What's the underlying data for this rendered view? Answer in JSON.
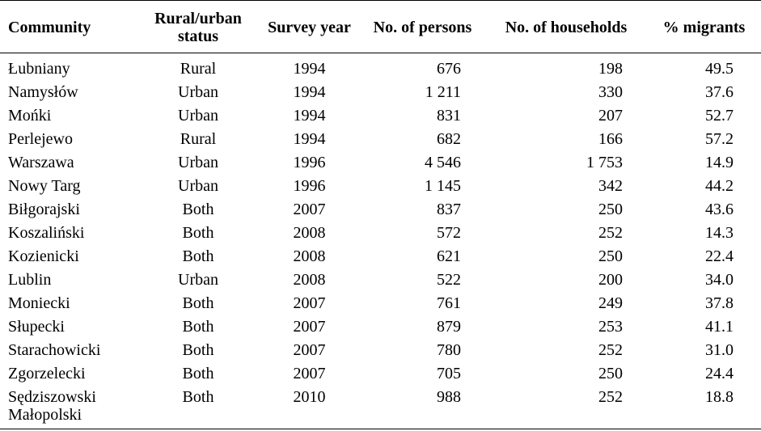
{
  "table": {
    "headers": {
      "community": "Community",
      "status": "Rural/urban status",
      "year": "Survey year",
      "persons": "No. of persons",
      "households": "No. of households",
      "migrants": "% migrants"
    },
    "rows": [
      {
        "community": "Łubniany",
        "status": "Rural",
        "year": "1994",
        "persons": "676",
        "households": "198",
        "migrants": "49.5"
      },
      {
        "community": "Namysłów",
        "status": "Urban",
        "year": "1994",
        "persons": "1 211",
        "households": "330",
        "migrants": "37.6"
      },
      {
        "community": "Mońki",
        "status": "Urban",
        "year": "1994",
        "persons": "831",
        "households": "207",
        "migrants": "52.7"
      },
      {
        "community": "Perlejewo",
        "status": "Rural",
        "year": "1994",
        "persons": "682",
        "households": "166",
        "migrants": "57.2"
      },
      {
        "community": "Warszawa",
        "status": "Urban",
        "year": "1996",
        "persons": "4 546",
        "households": "1 753",
        "migrants": "14.9"
      },
      {
        "community": "Nowy Targ",
        "status": "Urban",
        "year": "1996",
        "persons": "1 145",
        "households": "342",
        "migrants": "44.2"
      },
      {
        "community": "Biłgorajski",
        "status": "Both",
        "year": "2007",
        "persons": "837",
        "households": "250",
        "migrants": "43.6"
      },
      {
        "community": "Koszaliński",
        "status": "Both",
        "year": "2008",
        "persons": "572",
        "households": "252",
        "migrants": "14.3"
      },
      {
        "community": "Kozienicki",
        "status": "Both",
        "year": "2008",
        "persons": "621",
        "households": "250",
        "migrants": "22.4"
      },
      {
        "community": "Lublin",
        "status": "Urban",
        "year": "2008",
        "persons": "522",
        "households": "200",
        "migrants": "34.0"
      },
      {
        "community": "Moniecki",
        "status": "Both",
        "year": "2007",
        "persons": "761",
        "households": "249",
        "migrants": "37.8"
      },
      {
        "community": "Słupecki",
        "status": "Both",
        "year": "2007",
        "persons": "879",
        "households": "253",
        "migrants": "41.1"
      },
      {
        "community": "Starachowicki",
        "status": "Both",
        "year": "2007",
        "persons": "780",
        "households": "252",
        "migrants": "31.0"
      },
      {
        "community": "Zgorzelecki",
        "status": "Both",
        "year": "2007",
        "persons": "705",
        "households": "250",
        "migrants": "24.4"
      },
      {
        "community": "Sędziszowski Małopolski",
        "status": "Both",
        "year": "2010",
        "persons": "988",
        "households": "252",
        "migrants": "18.8"
      }
    ]
  }
}
